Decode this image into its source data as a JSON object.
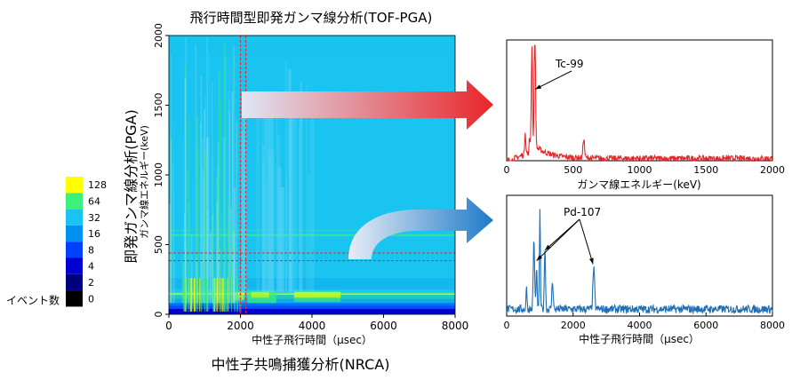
{
  "main_title": "飛行時間型即発ガンマ線分析(TOF-PGA)",
  "left_side_label": "即発ガンマ線分析(PGA)",
  "bottom_label": "中性子共鳴捕獲分析(NRCA)",
  "colors": {
    "red_spectrum": "#e8262a",
    "blue_spectrum": "#1f6fb5",
    "guide_line": "#e03030"
  },
  "chart_data": [
    {
      "type": "heatmap",
      "xlabel": "中性子飛行時間（μsec）",
      "ylabel": "ガンマ線エネルギー(keV)",
      "xlim": [
        0,
        8000
      ],
      "ylim": [
        0,
        2000
      ],
      "x_ticks": [
        "0",
        "2000",
        "4000",
        "6000",
        "8000"
      ],
      "y_ticks": [
        "0",
        "500",
        "1000",
        "1500",
        "2000"
      ],
      "guide_lines": {
        "x": [
          2000,
          2150
        ],
        "y": [
          385,
          440
        ]
      },
      "legend": {
        "title": "イベント数",
        "levels": [
          "0",
          "2",
          "4",
          "8",
          "16",
          "32",
          "64",
          "128"
        ],
        "colors": [
          "#000000",
          "#00007e",
          "#0000d0",
          "#0040ff",
          "#0090f0",
          "#19c4f0",
          "#3cf07a",
          "#ffff00"
        ]
      }
    },
    {
      "type": "line",
      "xlabel": "ガンマ線エネルギー(keV)",
      "ylabel": "",
      "xlim": [
        0,
        2000
      ],
      "x_ticks": [
        "0",
        "500",
        "1000",
        "1500",
        "2000"
      ],
      "ylim": [
        0,
        1
      ],
      "annotation": {
        "text": "Tc-99",
        "points_to": [
          [
            215,
            0.62
          ]
        ]
      },
      "peaks": [
        [
          140,
          0.2,
          0.28
        ],
        [
          190,
          0.85,
          0.3
        ],
        [
          210,
          0.95,
          0.25
        ],
        [
          215,
          0.6,
          0.28
        ],
        [
          580,
          0.17,
          0.4
        ]
      ],
      "continuum": {
        "level": 0.02,
        "rise_end": 170,
        "rise_start": 60
      }
    },
    {
      "type": "line",
      "xlabel": "中性子飛行時間（μsec）",
      "ylabel": "",
      "xlim": [
        0,
        8000
      ],
      "x_ticks": [
        "0",
        "2000",
        "4000",
        "6000",
        "8000"
      ],
      "ylim": [
        0,
        1
      ],
      "annotation": {
        "text": "Pd-107",
        "points_to": [
          [
            900,
            0.48
          ],
          [
            1150,
            0.57
          ],
          [
            2600,
            0.45
          ]
        ]
      },
      "peaks": [
        [
          600,
          0.2,
          5
        ],
        [
          820,
          0.6,
          7
        ],
        [
          900,
          0.33,
          6
        ],
        [
          1000,
          0.88,
          5
        ],
        [
          1150,
          0.55,
          6
        ],
        [
          1380,
          0.25,
          7
        ],
        [
          2620,
          0.35,
          9
        ]
      ],
      "continuum": {
        "level": 0.06
      }
    }
  ]
}
